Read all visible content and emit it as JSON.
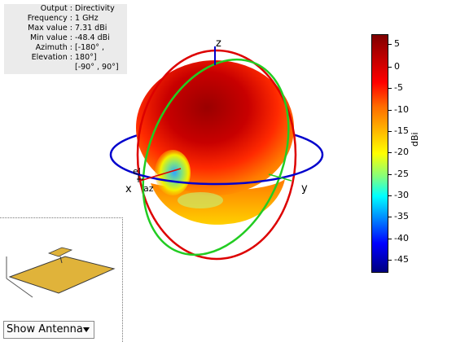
{
  "info": {
    "rows": [
      {
        "key": "Output :",
        "value": "Directivity"
      },
      {
        "key": "Frequency :",
        "value": "1 GHz"
      },
      {
        "key": "Max value :",
        "value": "7.31 dBi"
      },
      {
        "key": "Min value :",
        "value": "-48.4 dBi"
      },
      {
        "key": "Azimuth :",
        "value": "[-180° ,"
      },
      {
        "key": "Elevation :",
        "value": "180°]"
      }
    ],
    "extra_value": "[-90° , 90°]"
  },
  "axes": {
    "z": "z",
    "x": "x",
    "y": "y",
    "el": "el",
    "az": "az"
  },
  "colorbar": {
    "unit": "dBi",
    "ticks": [
      "5",
      "0",
      "-5",
      "-10",
      "-15",
      "-20",
      "-25",
      "-30",
      "-35",
      "-40",
      "-45"
    ],
    "colors": {
      "max": "#7f0000",
      "mid": "#ffff00",
      "min": "#00007f"
    }
  },
  "rings": {
    "azimuth_color": "#0000cc",
    "elevation_x_color": "#dd0000",
    "elevation_y_color": "#22cc22"
  },
  "controls": {
    "show_select_value": "Show Antenna"
  }
}
